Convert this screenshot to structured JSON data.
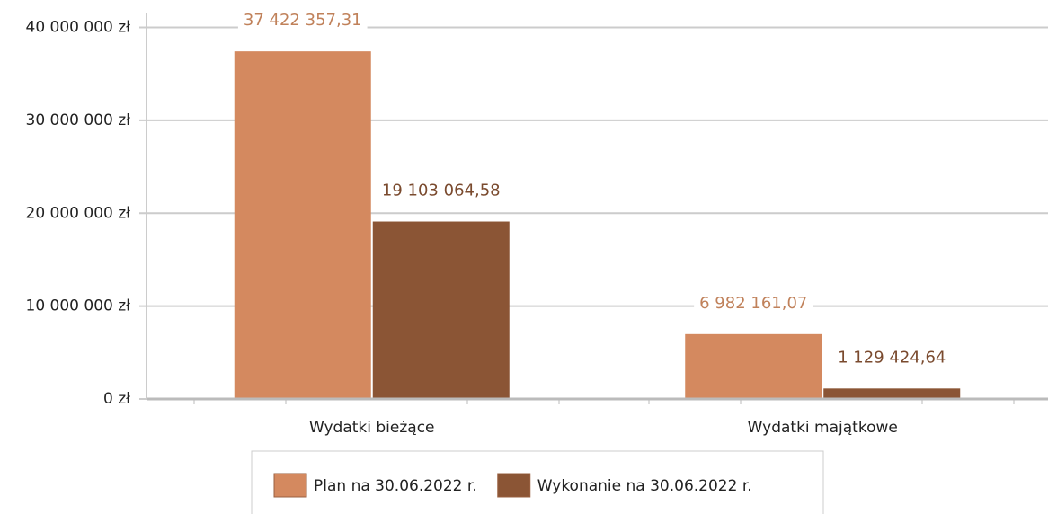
{
  "chart_data": {
    "type": "bar",
    "categories": [
      "Wydatki bieżące",
      "Wydatki majątkowe"
    ],
    "series": [
      {
        "name": "Plan na 30.06.2022 r.",
        "color": "#d4895f",
        "label_color": "#c0815a",
        "values": [
          37422357.31,
          6982161.07
        ],
        "value_labels": [
          "37 422 357,31",
          "6 982 161,07"
        ]
      },
      {
        "name": "Wykonanie na 30.06.2022 r.",
        "color": "#8b5535",
        "label_color": "#7a4a2e",
        "values": [
          19103064.58,
          1129424.64
        ],
        "value_labels": [
          "19 103 064,58",
          "1 129 424,64"
        ]
      }
    ],
    "ylim": [
      0,
      41500000
    ],
    "yticks": [
      {
        "value": 0,
        "label": "0 zł"
      },
      {
        "value": 10000000,
        "label": "10 000 000 zł"
      },
      {
        "value": 20000000,
        "label": "20 000 000 zł"
      },
      {
        "value": 30000000,
        "label": "30 000 000 zł"
      },
      {
        "value": 40000000,
        "label": "40 000 000 zł"
      }
    ],
    "grid": true
  }
}
